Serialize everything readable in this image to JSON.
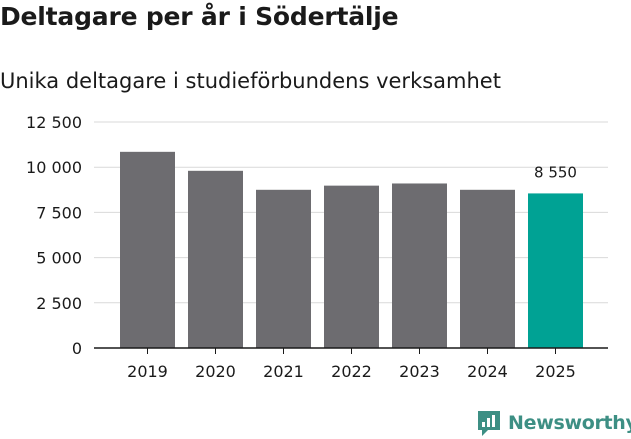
{
  "chart_data": {
    "type": "bar",
    "title": "Deltagare per år i Södertälje",
    "subtitle": "Unika deltagare i studieförbundens verksamhet",
    "xlabel": "",
    "ylabel": "",
    "categories": [
      "2019",
      "2020",
      "2021",
      "2022",
      "2023",
      "2024",
      "2025"
    ],
    "values": [
      10850,
      9800,
      8750,
      8980,
      9100,
      8750,
      8550
    ],
    "ylim": [
      0,
      12500
    ],
    "yticks": [
      0,
      2500,
      5000,
      7500,
      10000,
      12500
    ],
    "ytick_labels": [
      "0",
      "2 500",
      "5 000",
      "7 500",
      "10 000",
      "12 500"
    ],
    "grid": true,
    "highlight_index": 6,
    "data_labels": [
      {
        "index": 6,
        "text": "8 550"
      }
    ]
  },
  "colors": {
    "bar": "#6d6c70",
    "highlight": "#00a294",
    "grid": "#d9d9d9",
    "axis": "#1a1a1a",
    "brand": "#3d8f84"
  },
  "branding": {
    "logo_text": "Newsworthy",
    "icon": "newsworthy-chart-icon"
  }
}
